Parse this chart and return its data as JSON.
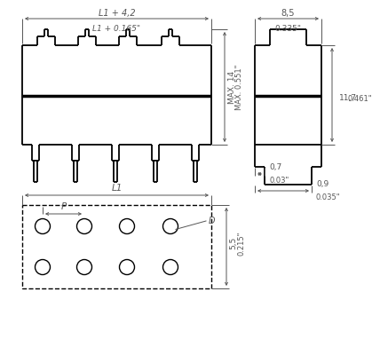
{
  "bg_color": "#ffffff",
  "line_color": "#000000",
  "dim_color": "#555555",
  "annotations": {
    "L1_plus_42": "L1 + 4,2",
    "L1_plus_165": "L1 + 0.165\"",
    "MAX14": "MAX. 14",
    "MAX0551": "MAX. 0.551\"",
    "L1": "L1",
    "P": "P",
    "D": "D",
    "dim_55": "5,5",
    "dim_0215": "0.215\"",
    "dim_85": "8,5",
    "dim_0335": "0.335\"",
    "dim_117": "11,7",
    "dim_0461": "0.461\"",
    "dim_07": "0,7",
    "dim_003": "0.03\"",
    "dim_09": "0,9",
    "dim_0035": "0.035\""
  }
}
